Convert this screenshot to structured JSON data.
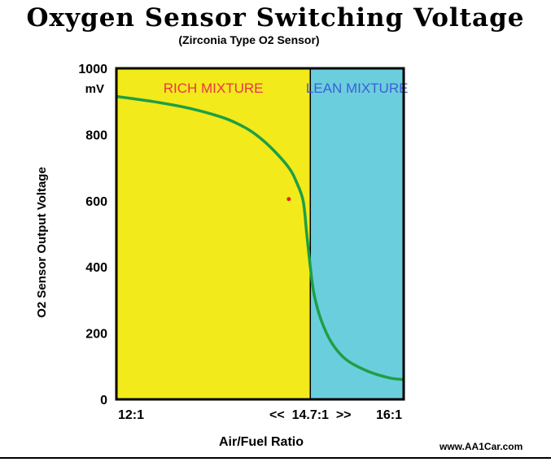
{
  "title": "Oxygen Sensor Switching Voltage",
  "subtitle": "(Zirconia Type O2 Sensor)",
  "credit": "www.AA1Car.com",
  "colors": {
    "rich_bg": "#f2ea1a",
    "lean_bg": "#6bcedd",
    "curve": "#1f9e46",
    "rich_label": "#e8334a",
    "lean_label": "#3a5fd6",
    "marker": "#e8222b"
  },
  "chart_data": {
    "type": "line",
    "title": "Oxygen Sensor Switching Voltage",
    "subtitle": "(Zirconia Type O2 Sensor)",
    "xlabel": "Air/Fuel Ratio",
    "ylabel": "O2 Sensor Output Voltage",
    "y_unit": "mV",
    "xlim": [
      12,
      16
    ],
    "ylim": [
      0,
      1000
    ],
    "yticks": [
      0,
      200,
      400,
      600,
      800,
      1000
    ],
    "xtick_labels": [
      {
        "x": 12,
        "label": "12:1"
      },
      {
        "x": 14.7,
        "label": "<<  14.7:1  >>"
      },
      {
        "x": 16,
        "label": "16:1"
      }
    ],
    "grid": false,
    "regions": [
      {
        "label": "RICH MIXTURE",
        "x_from": 12,
        "x_to": 14.7
      },
      {
        "label": "LEAN MIXTURE",
        "x_from": 14.7,
        "x_to": 16
      }
    ],
    "series": [
      {
        "values": [
          {
            "x": 12.0,
            "y": 915
          },
          {
            "x": 12.5,
            "y": 900
          },
          {
            "x": 13.0,
            "y": 880
          },
          {
            "x": 13.5,
            "y": 850
          },
          {
            "x": 13.8,
            "y": 820
          },
          {
            "x": 14.0,
            "y": 790
          },
          {
            "x": 14.2,
            "y": 750
          },
          {
            "x": 14.4,
            "y": 700
          },
          {
            "x": 14.5,
            "y": 660
          },
          {
            "x": 14.6,
            "y": 600
          },
          {
            "x": 14.65,
            "y": 500
          },
          {
            "x": 14.7,
            "y": 400
          },
          {
            "x": 14.75,
            "y": 320
          },
          {
            "x": 14.85,
            "y": 240
          },
          {
            "x": 15.0,
            "y": 170
          },
          {
            "x": 15.2,
            "y": 120
          },
          {
            "x": 15.5,
            "y": 85
          },
          {
            "x": 15.8,
            "y": 65
          },
          {
            "x": 16.0,
            "y": 60
          }
        ]
      }
    ],
    "annotations": [
      {
        "type": "point",
        "x": 14.4,
        "y": 605
      }
    ]
  }
}
